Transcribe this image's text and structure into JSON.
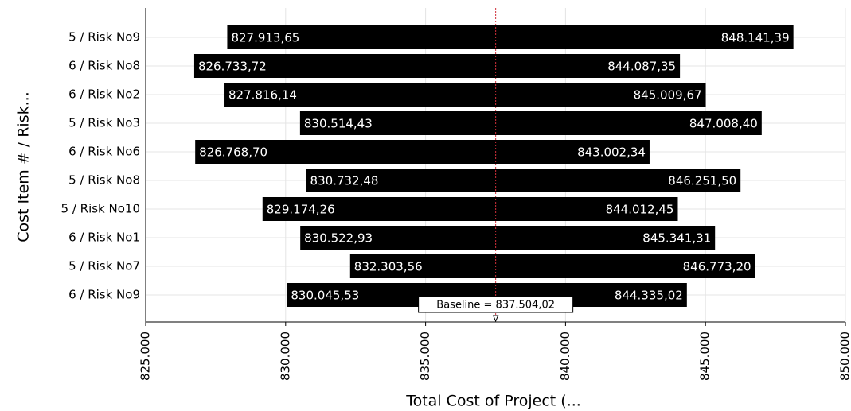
{
  "chart_data": {
    "type": "tornado",
    "ylabel": "Cost Item # / Risk...",
    "xlabel": "Total Cost of Project (...",
    "categories": [
      "5 / Risk No9",
      "6 / Risk No8",
      "6 / Risk No2",
      "5 / Risk No3",
      "6 / Risk No6",
      "5 / Risk No8",
      "5 / Risk No10",
      "6 / Risk No1",
      "5 / Risk No7",
      "6 / Risk No9"
    ],
    "low_values": [
      827913.65,
      826733.72,
      827816.14,
      830514.43,
      826768.7,
      830732.48,
      829174.26,
      830522.93,
      832303.56,
      830045.53
    ],
    "low_labels": [
      "827.913,65",
      "826.733,72",
      "827.816,14",
      "830.514,43",
      "826.768,70",
      "830.732,48",
      "829.174,26",
      "830.522,93",
      "832.303,56",
      "830.045,53"
    ],
    "high_values": [
      848141.39,
      844087.35,
      845009.67,
      847008.4,
      843002.34,
      846251.5,
      844012.45,
      845341.31,
      846773.2,
      844335.02
    ],
    "high_labels": [
      "848.141,39",
      "844.087,35",
      "845.009,67",
      "847.008,40",
      "843.002,34",
      "846.251,50",
      "844.012,45",
      "845.341,31",
      "846.773,20",
      "844.335,02"
    ],
    "color": "#000000",
    "baseline": {
      "value": 837504.02,
      "label": "Baseline = 837.504,02"
    },
    "xlim": [
      825000,
      850000
    ],
    "xticks": [
      {
        "value": 825000,
        "label": "825.000"
      },
      {
        "value": 830000,
        "label": "830.000"
      },
      {
        "value": 835000,
        "label": "835.000"
      },
      {
        "value": 840000,
        "label": "840.000"
      },
      {
        "value": 845000,
        "label": "845.000"
      },
      {
        "value": 850000,
        "label": "850.000"
      }
    ],
    "grid": true
  }
}
